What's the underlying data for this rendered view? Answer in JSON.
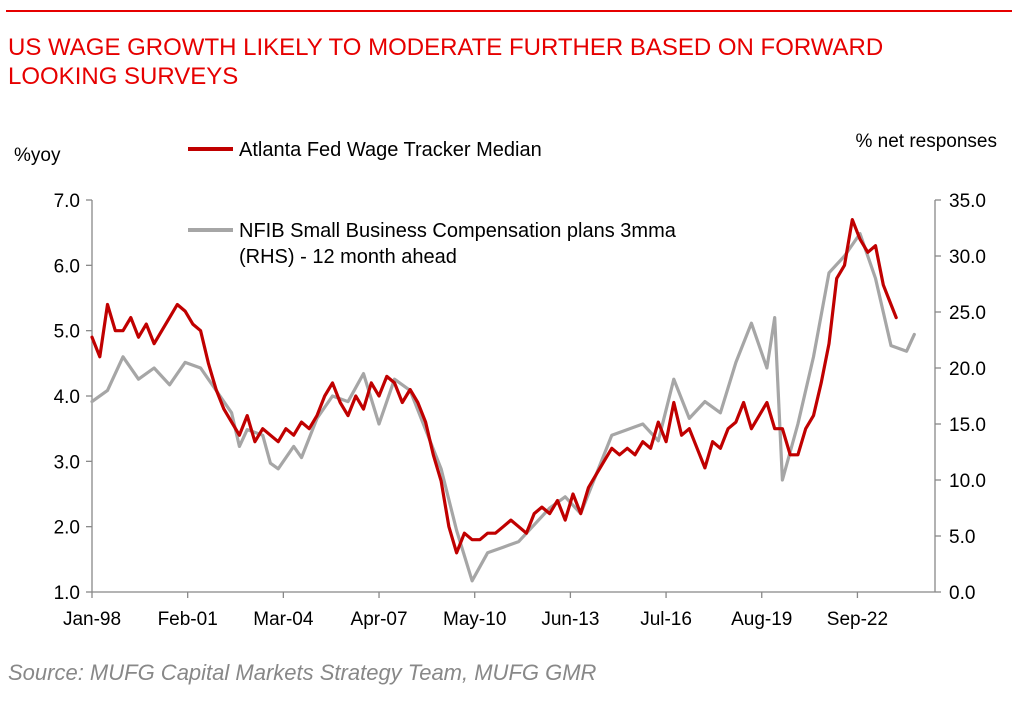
{
  "title": "US WAGE GROWTH LIKELY TO MODERATE FURTHER BASED ON FORWARD\nLOOKING SURVEYS",
  "source": "Source: MUFG Capital Markets Strategy Team, MUFG GMR",
  "colors": {
    "accent": "#e60000",
    "atlanta": "#c00000",
    "nfib": "#a6a6a6",
    "source_text": "#888888"
  },
  "chart_data": {
    "type": "line",
    "ylabel_left": "%yoy",
    "ylabel_right": "% net responses",
    "ylim_left": [
      1.0,
      7.0
    ],
    "ylim_right": [
      0.0,
      35.0
    ],
    "yticks_left": [
      "1.0",
      "2.0",
      "3.0",
      "4.0",
      "5.0",
      "6.0",
      "7.0"
    ],
    "yticks_right": [
      "0.0",
      "5.0",
      "10.0",
      "15.0",
      "20.0",
      "25.0",
      "30.0",
      "35.0"
    ],
    "xticks": [
      "Jan-98",
      "Feb-01",
      "Mar-04",
      "Apr-07",
      "May-10",
      "Jun-13",
      "Jul-16",
      "Aug-19",
      "Sep-22"
    ],
    "xlim": [
      "1998-01",
      "2025-03"
    ],
    "grid": false,
    "legend": [
      {
        "name": "Atlanta Fed Wage Tracker Median",
        "color": "#c00000"
      },
      {
        "name": "NFIB Small Business Compensation plans 3mma",
        "name_line2": "(RHS) - 12 month ahead",
        "color": "#a6a6a6"
      }
    ],
    "series": [
      {
        "name": "Atlanta Fed Wage Tracker Median",
        "axis": "left",
        "color": "#c00000",
        "points": [
          [
            "1998-01",
            4.9
          ],
          [
            "1998-04",
            4.6
          ],
          [
            "1998-07",
            5.4
          ],
          [
            "1998-10",
            5.0
          ],
          [
            "1999-01",
            5.0
          ],
          [
            "1999-04",
            5.2
          ],
          [
            "1999-07",
            4.9
          ],
          [
            "1999-10",
            5.1
          ],
          [
            "2000-01",
            4.8
          ],
          [
            "2000-04",
            5.0
          ],
          [
            "2000-07",
            5.2
          ],
          [
            "2000-10",
            5.4
          ],
          [
            "2001-01",
            5.3
          ],
          [
            "2001-04",
            5.1
          ],
          [
            "2001-07",
            5.0
          ],
          [
            "2001-10",
            4.5
          ],
          [
            "2002-01",
            4.1
          ],
          [
            "2002-04",
            3.8
          ],
          [
            "2002-07",
            3.6
          ],
          [
            "2002-10",
            3.4
          ],
          [
            "2003-01",
            3.7
          ],
          [
            "2003-04",
            3.3
          ],
          [
            "2003-07",
            3.5
          ],
          [
            "2003-10",
            3.4
          ],
          [
            "2004-01",
            3.3
          ],
          [
            "2004-04",
            3.5
          ],
          [
            "2004-07",
            3.4
          ],
          [
            "2004-10",
            3.6
          ],
          [
            "2005-01",
            3.5
          ],
          [
            "2005-04",
            3.7
          ],
          [
            "2005-07",
            4.0
          ],
          [
            "2005-10",
            4.2
          ],
          [
            "2006-01",
            3.9
          ],
          [
            "2006-04",
            3.7
          ],
          [
            "2006-07",
            4.0
          ],
          [
            "2006-10",
            3.8
          ],
          [
            "2007-01",
            4.2
          ],
          [
            "2007-04",
            4.0
          ],
          [
            "2007-07",
            4.3
          ],
          [
            "2007-10",
            4.2
          ],
          [
            "2008-01",
            3.9
          ],
          [
            "2008-04",
            4.1
          ],
          [
            "2008-07",
            3.9
          ],
          [
            "2008-10",
            3.6
          ],
          [
            "2009-01",
            3.1
          ],
          [
            "2009-04",
            2.7
          ],
          [
            "2009-07",
            2.0
          ],
          [
            "2009-10",
            1.6
          ],
          [
            "2010-01",
            1.9
          ],
          [
            "2010-04",
            1.8
          ],
          [
            "2010-07",
            1.8
          ],
          [
            "2010-10",
            1.9
          ],
          [
            "2011-01",
            1.9
          ],
          [
            "2011-04",
            2.0
          ],
          [
            "2011-07",
            2.1
          ],
          [
            "2011-10",
            2.0
          ],
          [
            "2012-01",
            1.9
          ],
          [
            "2012-04",
            2.2
          ],
          [
            "2012-07",
            2.3
          ],
          [
            "2012-10",
            2.2
          ],
          [
            "2013-01",
            2.4
          ],
          [
            "2013-04",
            2.1
          ],
          [
            "2013-07",
            2.5
          ],
          [
            "2013-10",
            2.2
          ],
          [
            "2014-01",
            2.6
          ],
          [
            "2014-04",
            2.8
          ],
          [
            "2014-07",
            3.0
          ],
          [
            "2014-10",
            3.2
          ],
          [
            "2015-01",
            3.1
          ],
          [
            "2015-04",
            3.2
          ],
          [
            "2015-07",
            3.1
          ],
          [
            "2015-10",
            3.3
          ],
          [
            "2016-01",
            3.2
          ],
          [
            "2016-04",
            3.6
          ],
          [
            "2016-07",
            3.3
          ],
          [
            "2016-10",
            3.9
          ],
          [
            "2017-01",
            3.4
          ],
          [
            "2017-04",
            3.5
          ],
          [
            "2017-07",
            3.2
          ],
          [
            "2017-10",
            2.9
          ],
          [
            "2018-01",
            3.3
          ],
          [
            "2018-04",
            3.2
          ],
          [
            "2018-07",
            3.5
          ],
          [
            "2018-10",
            3.6
          ],
          [
            "2019-01",
            3.9
          ],
          [
            "2019-04",
            3.5
          ],
          [
            "2019-07",
            3.7
          ],
          [
            "2019-10",
            3.9
          ],
          [
            "2020-01",
            3.5
          ],
          [
            "2020-04",
            3.5
          ],
          [
            "2020-07",
            3.1
          ],
          [
            "2020-10",
            3.1
          ],
          [
            "2021-01",
            3.5
          ],
          [
            "2021-04",
            3.7
          ],
          [
            "2021-07",
            4.2
          ],
          [
            "2021-10",
            4.8
          ],
          [
            "2022-01",
            5.8
          ],
          [
            "2022-04",
            6.0
          ],
          [
            "2022-07",
            6.7
          ],
          [
            "2022-10",
            6.4
          ],
          [
            "2023-01",
            6.2
          ],
          [
            "2023-04",
            6.3
          ],
          [
            "2023-07",
            5.7
          ],
          [
            "2023-10",
            5.4
          ],
          [
            "2023-12",
            5.2
          ]
        ]
      },
      {
        "name": "NFIB Small Business Compensation plans 3mma",
        "axis": "right",
        "color": "#a6a6a6",
        "points": [
          [
            "1998-01",
            17.0
          ],
          [
            "1998-07",
            18.0
          ],
          [
            "1999-01",
            21.0
          ],
          [
            "1999-07",
            19.0
          ],
          [
            "2000-01",
            20.0
          ],
          [
            "2000-07",
            18.5
          ],
          [
            "2000-10",
            19.5
          ],
          [
            "2001-01",
            20.5
          ],
          [
            "2001-07",
            20.0
          ],
          [
            "2002-01",
            18.0
          ],
          [
            "2002-07",
            16.0
          ],
          [
            "2002-10",
            13.0
          ],
          [
            "2003-01",
            14.5
          ],
          [
            "2003-07",
            14.0
          ],
          [
            "2003-10",
            11.5
          ],
          [
            "2004-01",
            11.0
          ],
          [
            "2004-07",
            13.0
          ],
          [
            "2004-10",
            12.0
          ],
          [
            "2005-04",
            15.5
          ],
          [
            "2005-10",
            17.5
          ],
          [
            "2006-04",
            17.0
          ],
          [
            "2006-10",
            19.5
          ],
          [
            "2007-04",
            15.0
          ],
          [
            "2007-10",
            19.0
          ],
          [
            "2008-04",
            18.0
          ],
          [
            "2008-10",
            14.5
          ],
          [
            "2009-04",
            11.0
          ],
          [
            "2009-10",
            5.5
          ],
          [
            "2010-04",
            1.0
          ],
          [
            "2010-10",
            3.5
          ],
          [
            "2011-04",
            4.0
          ],
          [
            "2011-10",
            4.5
          ],
          [
            "2012-04",
            6.0
          ],
          [
            "2012-10",
            7.5
          ],
          [
            "2013-04",
            8.5
          ],
          [
            "2013-10",
            7.0
          ],
          [
            "2014-04",
            10.5
          ],
          [
            "2014-10",
            14.0
          ],
          [
            "2015-04",
            14.5
          ],
          [
            "2015-10",
            15.0
          ],
          [
            "2016-04",
            13.5
          ],
          [
            "2016-10",
            19.0
          ],
          [
            "2017-04",
            15.5
          ],
          [
            "2017-10",
            17.0
          ],
          [
            "2018-04",
            16.0
          ],
          [
            "2018-10",
            20.5
          ],
          [
            "2019-04",
            24.0
          ],
          [
            "2019-10",
            20.0
          ],
          [
            "2020-01",
            24.5
          ],
          [
            "2020-04",
            10.0
          ],
          [
            "2020-10",
            15.0
          ],
          [
            "2021-04",
            21.0
          ],
          [
            "2021-10",
            28.5
          ],
          [
            "2022-04",
            30.0
          ],
          [
            "2022-10",
            32.0
          ],
          [
            "2023-04",
            28.0
          ],
          [
            "2023-10",
            22.0
          ],
          [
            "2024-04",
            21.5
          ],
          [
            "2024-07",
            23.0
          ]
        ]
      }
    ]
  }
}
